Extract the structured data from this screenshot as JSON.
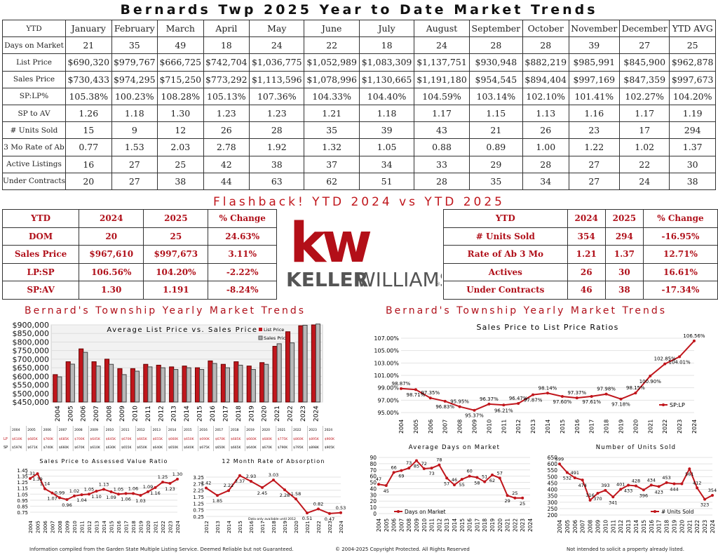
{
  "title": "Bernards Twp 2025 Year to Date Market Trends",
  "colors": {
    "accent": "#c0161c",
    "dark": "#111111",
    "grey": "#9a9a9a"
  },
  "monthly": {
    "headers": [
      "YTD",
      "January",
      "February",
      "March",
      "April",
      "May",
      "June",
      "July",
      "August",
      "September",
      "October",
      "November",
      "December",
      "YTD AVG"
    ],
    "rows": [
      {
        "label": "Days on Market",
        "values": [
          "21",
          "35",
          "49",
          "18",
          "24",
          "22",
          "18",
          "24",
          "28",
          "28",
          "39",
          "27",
          "25"
        ]
      },
      {
        "label": "List Price",
        "values": [
          "$690,320",
          "$979,767",
          "$666,725",
          "$742,704",
          "$1,036,775",
          "$1,052,989",
          "$1,083,309",
          "$1,137,751",
          "$930,948",
          "$882,219",
          "$985,991",
          "$845,900",
          "$962,878"
        ]
      },
      {
        "label": "Sales Price",
        "values": [
          "$730,433",
          "$974,295",
          "$715,250",
          "$773,292",
          "$1,113,596",
          "$1,078,996",
          "$1,130,665",
          "$1,191,180",
          "$954,545",
          "$894,404",
          "$997,169",
          "$847,359",
          "$997,673"
        ]
      },
      {
        "label": "SP:LP%",
        "values": [
          "105.38%",
          "100.23%",
          "108.28%",
          "105.13%",
          "107.36%",
          "104.33%",
          "104.40%",
          "104.59%",
          "103.14%",
          "102.10%",
          "101.41%",
          "102.27%",
          "104.20%"
        ]
      },
      {
        "label": "SP to AV",
        "values": [
          "1.26",
          "1.18",
          "1.30",
          "1.23",
          "1.23",
          "1.21",
          "1.18",
          "1.17",
          "1.15",
          "1.13",
          "1.16",
          "1.17",
          "1.19"
        ]
      },
      {
        "label": "# Units Sold",
        "values": [
          "15",
          "9",
          "12",
          "26",
          "28",
          "35",
          "39",
          "43",
          "21",
          "26",
          "23",
          "17",
          "294"
        ]
      },
      {
        "label": "3 Mo Rate of Ab",
        "values": [
          "0.77",
          "1.53",
          "2.03",
          "2.78",
          "1.92",
          "1.32",
          "1.05",
          "0.88",
          "0.89",
          "1.00",
          "1.22",
          "1.02",
          "1.37"
        ]
      },
      {
        "label": "Active Listings",
        "values": [
          "16",
          "27",
          "25",
          "42",
          "38",
          "37",
          "34",
          "33",
          "29",
          "28",
          "27",
          "22",
          "30"
        ]
      },
      {
        "label": "Under Contracts",
        "values": [
          "20",
          "27",
          "38",
          "44",
          "63",
          "62",
          "51",
          "28",
          "35",
          "34",
          "27",
          "24",
          "38"
        ]
      }
    ]
  },
  "flashback": "Flashback!  YTD 2024 vs YTD 2025",
  "left_cmp": {
    "headers": [
      "YTD",
      "2024",
      "2025",
      "% Change"
    ],
    "rows": [
      [
        "DOM",
        "20",
        "25",
        "24.63%"
      ],
      [
        "Sales Price",
        "$967,610",
        "$997,673",
        "3.11%"
      ],
      [
        "LP:SP",
        "106.56%",
        "104.20%",
        "-2.22%"
      ],
      [
        "SP:AV",
        "1.30",
        "1.191",
        "-8.24%"
      ]
    ]
  },
  "right_cmp": {
    "headers": [
      "YTD",
      "2024",
      "2025",
      "% Change"
    ],
    "rows": [
      [
        "# Units Sold",
        "354",
        "294",
        "-16.95%"
      ],
      [
        "Rate of Ab 3 Mo",
        "1.21",
        "1.37",
        "12.71%"
      ],
      [
        "Actives",
        "26",
        "30",
        "16.61%"
      ],
      [
        "Under Contracts",
        "46",
        "38",
        "-17.34%"
      ]
    ]
  },
  "logo": {
    "mark": "kw",
    "keller": "KELLER",
    "williams": "WILLIAMS",
    "reg": "®"
  },
  "section_left": "Bernard's Township Yearly Market Trends",
  "section_right": "Bernard's Township Yearly Market Trends",
  "mini_table": {
    "years": [
      "2004",
      "2005",
      "2006",
      "2007",
      "2008",
      "2009",
      "2010",
      "2011",
      "2012",
      "2013",
      "2014",
      "2015",
      "2016",
      "2017",
      "2018",
      "2019",
      "2020",
      "2021",
      "2022",
      "2023",
      "2024"
    ],
    "lp_label": "LP",
    "sp_label": "SP",
    "lp": [
      "$610K",
      "$685K",
      "$760K",
      "$685K",
      "$700K",
      "$645K",
      "$645K",
      "$670K",
      "$665K",
      "$655K",
      "$660K",
      "$650K",
      "$690K",
      "$670K",
      "$685K",
      "$660K",
      "$680K",
      "$775K",
      "$860K",
      "$895K",
      "$900K"
    ],
    "sp": [
      "$597K",
      "$671K",
      "$740K",
      "$660K",
      "$670K",
      "$610K",
      "$630K",
      "$655K",
      "$650K",
      "$640K",
      "$650K",
      "$640K",
      "$675K",
      "$650K",
      "$665K",
      "$640K",
      "$670K",
      "$790K",
      "$795K",
      "$898K",
      "$905K"
    ]
  },
  "footer": {
    "left": "Information compiled from the Garden State Multiple Listing Service.  Deemed Reliable but not Guaranteed.",
    "center": "© 2004-2025 Copyright Protected.  All Rights Reserved",
    "right": "Not intended to solicit a property already listed."
  },
  "chart_data": [
    {
      "type": "bar",
      "title": "Average List Price vs. Sales Price",
      "categories": [
        "2004",
        "2005",
        "2006",
        "2007",
        "2008",
        "2009",
        "2010",
        "2011",
        "2012",
        "2013",
        "2014",
        "2015",
        "2016",
        "2017",
        "2018",
        "2019",
        "2020",
        "2021",
        "2022",
        "2023",
        "2024"
      ],
      "series": [
        {
          "name": "List Price",
          "values": [
            610000,
            685000,
            760000,
            685000,
            700000,
            645000,
            645000,
            670000,
            665000,
            655000,
            660000,
            650000,
            690000,
            670000,
            685000,
            660000,
            680000,
            775000,
            860000,
            895000,
            900000
          ]
        },
        {
          "name": "Sales Price",
          "values": [
            597000,
            671000,
            740000,
            660000,
            670000,
            610000,
            630000,
            655000,
            650000,
            640000,
            650000,
            640000,
            675000,
            650000,
            665000,
            640000,
            670000,
            790000,
            795000,
            898000,
            905000
          ]
        }
      ],
      "ylim": [
        450000,
        900000
      ],
      "yticks": [
        "$900,000",
        "$850,000",
        "$800,000",
        "$750,000",
        "$700,000",
        "$650,000",
        "$600,000",
        "$550,000",
        "$500,000",
        "$450,000"
      ]
    },
    {
      "type": "line",
      "title": "Sales Price to List Price Ratios",
      "categories": [
        "2004",
        "2005",
        "2006",
        "2007",
        "2008",
        "2009",
        "2010",
        "2011",
        "2012",
        "2013",
        "2014",
        "2015",
        "2016",
        "2017",
        "2018",
        "2019",
        "2020",
        "2021",
        "2022",
        "2023",
        "2024"
      ],
      "series": [
        {
          "name": "SP:LP",
          "values": [
            98.87,
            98.71,
            97.35,
            96.83,
            95.95,
            95.37,
            96.37,
            96.21,
            96.47,
            97.87,
            98.14,
            97.6,
            97.37,
            97.61,
            97.98,
            97.18,
            98.15,
            100.9,
            102.85,
            104.01,
            106.56
          ]
        }
      ],
      "labels": [
        "98.87%",
        "98.71%",
        "97.35%",
        "96.83%",
        "95.95%",
        "95.37%",
        "96.37%",
        "96.21%",
        "96.47%",
        "97.87%",
        "98.14%",
        "97.60%",
        "97.37%",
        "97.61%",
        "97.98%",
        "97.18%",
        "98.15%",
        "100.90%",
        "102.85%",
        "104.01%",
        "106.56%"
      ],
      "ylim": [
        95,
        107
      ],
      "yticks": [
        "107.00%",
        "105.00%",
        "103.00%",
        "101.00%",
        "99.00%",
        "97.00%",
        "95.00%"
      ]
    },
    {
      "type": "line",
      "title": "Sales Price to Assessed Value Ratio",
      "categories": [
        "2004",
        "2005",
        "2006",
        "2007",
        "2008",
        "2009",
        "2010",
        "2011",
        "2012",
        "2013",
        "2014",
        "2015",
        "2016",
        "2017",
        "2018",
        "2019",
        "2020",
        "2021",
        "2022",
        "2023",
        "2024"
      ],
      "series": [
        {
          "name": "SP:AV",
          "values": [
            1.31,
            1.39,
            1.14,
            1.07,
            0.99,
            0.96,
            1.02,
            1.04,
            1.05,
            1.1,
            1.13,
            1.09,
            1.05,
            1.06,
            1.06,
            1.03,
            1.09,
            1.16,
            1.25,
            1.23,
            1.3
          ]
        }
      ],
      "labels": [
        "1.31",
        "1.39",
        "1.14",
        "1.07",
        "0.99",
        "0.96",
        "1.02",
        "1.04",
        "1.05",
        "1.10",
        "1.13",
        "1.09",
        "1.05",
        "1.06",
        "1.06",
        "1.03",
        "1.09",
        "1.16",
        "1.25",
        "1.23",
        "1.30"
      ],
      "ylim": [
        0.75,
        1.45
      ],
      "yticks": [
        "1.45",
        "1.35",
        "1.25",
        "1.15",
        "1.05",
        "0.95",
        "0.85",
        "0.75"
      ]
    },
    {
      "type": "line",
      "title": "12 Month Rate of Absorption",
      "categories": [
        "2012",
        "2013",
        "2014",
        "2015",
        "2016",
        "2017",
        "2018",
        "2019",
        "2020",
        "2021",
        "2022",
        "2023",
        "2024"
      ],
      "series": [
        {
          "name": "Rate of Absorption",
          "values": [
            2.42,
            1.85,
            2.22,
            3.37,
            2.93,
            2.45,
            3.03,
            2.28,
            1.58,
            0.51,
            0.82,
            0.47,
            0.53
          ]
        }
      ],
      "labels": [
        "2.42",
        "1.85",
        "2.22",
        "3.37",
        "2.93",
        "2.45",
        "3.03",
        "2.28",
        "1.58",
        "0.51",
        "0.82",
        "0.47",
        "0.53"
      ],
      "note": "Data only available until 2012",
      "ylim": [
        0.25,
        3.25
      ],
      "yticks": [
        "3.25",
        "2.75",
        "2.25",
        "1.75",
        "1.25",
        "0.75",
        "0.25"
      ]
    },
    {
      "type": "line",
      "title": "Average Days on Market",
      "categories": [
        "2004",
        "2005",
        "2006",
        "2007",
        "2008",
        "2009",
        "2010",
        "2011",
        "2012",
        "2013",
        "2014",
        "2015",
        "2016",
        "2017",
        "2018",
        "2019",
        "2020",
        "2021",
        "2022",
        "2023",
        "2024"
      ],
      "series": [
        {
          "name": "Days on Market",
          "values": [
            47,
            45,
            66,
            69,
            73,
            85,
            72,
            73,
            78,
            57,
            46,
            55,
            60,
            58,
            51,
            62,
            57,
            29,
            25,
            25,
            null
          ]
        }
      ],
      "labels": [
        "47",
        "45",
        "66",
        "69",
        "73",
        "85",
        "72",
        "73",
        "78",
        "57",
        "46",
        "55",
        "60",
        "58",
        "51",
        "62",
        "57",
        "29",
        "25",
        "25",
        ""
      ],
      "ylim": [
        0,
        90
      ],
      "yticks": [
        "90",
        "80",
        "70",
        "60",
        "50",
        "40",
        "30",
        "20",
        "10",
        "0"
      ]
    },
    {
      "type": "line",
      "title": "Number of Units Sold",
      "categories": [
        "2004",
        "2005",
        "2006",
        "2007",
        "2008",
        "2009",
        "2010",
        "2011",
        "2012",
        "2013",
        "2014",
        "2015",
        "2016",
        "2017",
        "2018",
        "2019",
        "2020",
        "2021",
        "2022",
        "2023",
        "2024"
      ],
      "series": [
        {
          "name": "# Units Sold",
          "values": [
            599,
            532,
            491,
            474,
            316,
            370,
            393,
            341,
            401,
            433,
            428,
            396,
            434,
            423,
            453,
            444,
            444,
            561,
            412,
            323,
            354
          ]
        }
      ],
      "labels": [
        "599",
        "532",
        "491",
        "474",
        "316",
        "370",
        "393",
        "341",
        "401",
        "433",
        "428",
        "396",
        "434",
        "423",
        "453",
        "444",
        "",
        "561",
        "412",
        "323",
        "354"
      ],
      "ylim": [
        200,
        650
      ],
      "yticks": [
        "650",
        "600",
        "550",
        "500",
        "450",
        "400",
        "350",
        "300",
        "250",
        "200"
      ]
    }
  ]
}
